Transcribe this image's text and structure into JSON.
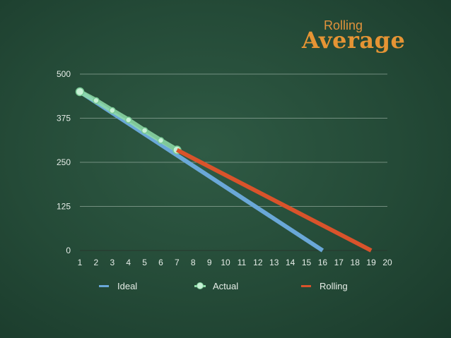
{
  "title": {
    "sub": "Rolling",
    "main": "Average"
  },
  "chart_data": {
    "type": "line",
    "x": [
      1,
      2,
      3,
      4,
      5,
      6,
      7,
      8,
      9,
      10,
      11,
      12,
      13,
      14,
      15,
      16,
      17,
      18,
      19,
      20
    ],
    "xlim": [
      1,
      20
    ],
    "ylim": [
      0,
      500
    ],
    "yticks": [
      0,
      125,
      250,
      375,
      500
    ],
    "grid": true,
    "legend_position": "bottom",
    "series": [
      {
        "name": "Ideal",
        "color": "#6aa8d8",
        "x": [
          1,
          16
        ],
        "y": [
          450,
          0
        ]
      },
      {
        "name": "Actual",
        "color": "#8fdca8",
        "x": [
          1,
          2,
          3,
          4,
          5,
          6,
          7
        ],
        "y": [
          450,
          425,
          397,
          370,
          340,
          312,
          285
        ],
        "markers": true
      },
      {
        "name": "Rolling",
        "color": "#d9532b",
        "x": [
          7,
          19
        ],
        "y": [
          285,
          0
        ]
      }
    ]
  }
}
